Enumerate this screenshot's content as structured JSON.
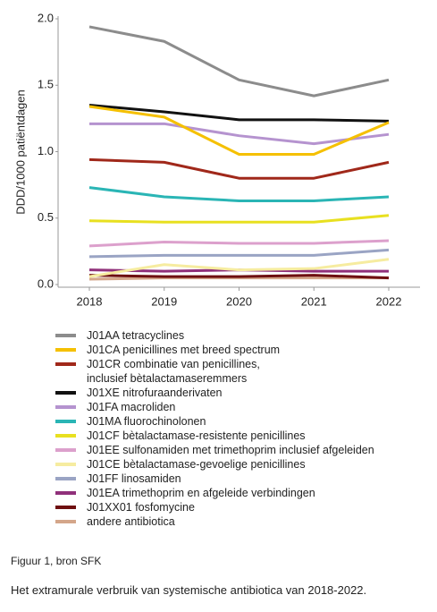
{
  "chart_data": {
    "type": "line",
    "y_label": "DDD/1000 patiëntdagen",
    "categories": [
      "2018",
      "2019",
      "2020",
      "2021",
      "2022"
    ],
    "ylim": [
      0,
      2
    ],
    "yticks": [
      {
        "value": 0,
        "label": "0.0"
      },
      0.5,
      {
        "value": 1,
        "label": "1.0"
      },
      1.5,
      {
        "value": 2,
        "label": "2.0"
      }
    ],
    "series": [
      {
        "name": "J01AA tetracyclines",
        "color": "#8c8c8c",
        "values": [
          1.94,
          1.83,
          1.54,
          1.42,
          1.54
        ]
      },
      {
        "name": "J01CA penicillines met breed spectrum",
        "color": "#f5c000",
        "values": [
          1.34,
          1.26,
          0.98,
          0.98,
          1.22
        ]
      },
      {
        "name": "J01CR combinatie van penicillines,\ninclusief bètalactamaseremmers",
        "color": "#a0281a",
        "values": [
          0.94,
          0.92,
          0.8,
          0.8,
          0.92
        ]
      },
      {
        "name": "J01XE nitrofuraanderivaten",
        "color": "#111111",
        "values": [
          1.35,
          1.3,
          1.24,
          1.24,
          1.23
        ]
      },
      {
        "name": "J01FA macroliden",
        "color": "#b593cf",
        "values": [
          1.21,
          1.21,
          1.12,
          1.06,
          1.13
        ]
      },
      {
        "name": "J01MA fluorochinolonen",
        "color": "#2ab5b5",
        "values": [
          0.73,
          0.66,
          0.63,
          0.63,
          0.66
        ]
      },
      {
        "name": "J01CF bètalactamase-resistente penicillines",
        "color": "#e8e020",
        "values": [
          0.48,
          0.47,
          0.47,
          0.47,
          0.52
        ]
      },
      {
        "name": "J01EE sulfonamiden met trimethoprim inclusief afgeleiden",
        "color": "#dca0cc",
        "values": [
          0.29,
          0.32,
          0.31,
          0.31,
          0.33
        ]
      },
      {
        "name": "J01CE bètalactamase-gevoelige penicillines",
        "color": "#f6eca0",
        "values": [
          0.06,
          0.15,
          0.11,
          0.12,
          0.19
        ]
      },
      {
        "name": "J01FF linosamiden",
        "color": "#9aa4c4",
        "values": [
          0.21,
          0.22,
          0.22,
          0.22,
          0.26
        ]
      },
      {
        "name": "J01EA trimethoprim en afgeleide verbindingen",
        "color": "#90307a",
        "values": [
          0.11,
          0.1,
          0.11,
          0.1,
          0.1
        ]
      },
      {
        "name": "J01XX01 fosfomycine",
        "color": "#6e0f10",
        "values": [
          0.07,
          0.06,
          0.06,
          0.07,
          0.05
        ]
      },
      {
        "name": "andere antibiotica",
        "color": "#d4a68a",
        "values": [
          0.04,
          0.05,
          0.05,
          0.05,
          0.05
        ]
      }
    ],
    "caption_source": "Figuur 1, bron SFK",
    "caption": "Het extramurale verbruik van systemische antibiotica van 2018-2022."
  }
}
